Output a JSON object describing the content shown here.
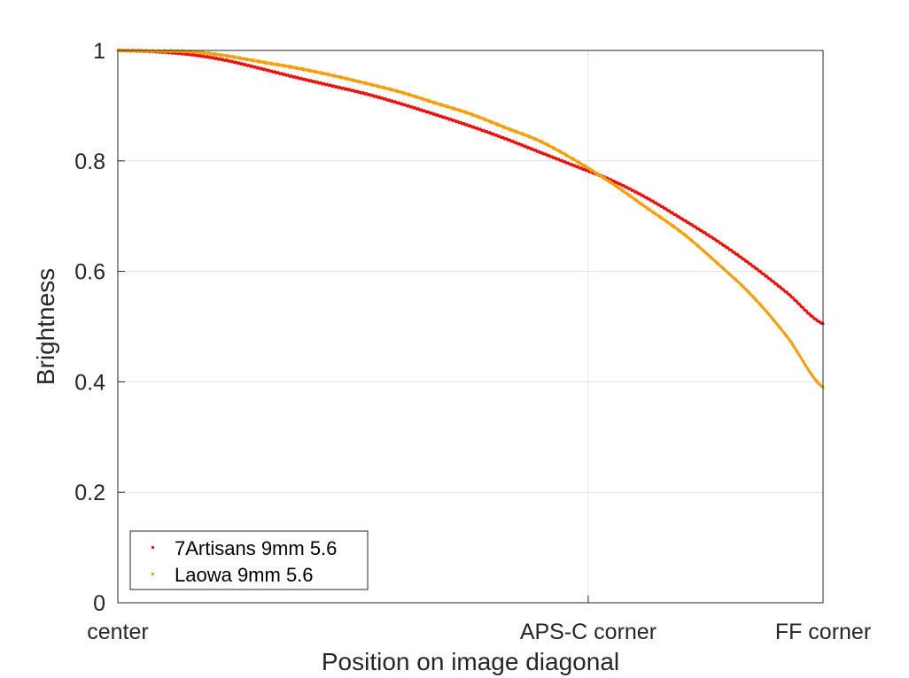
{
  "chart_data": {
    "type": "line",
    "xlabel": "Position on image diagonal",
    "ylabel": "Brightness",
    "xlim": [
      0,
      1
    ],
    "ylim": [
      0,
      1
    ],
    "x_ticks": [
      {
        "value": 0,
        "label": "center"
      },
      {
        "value": 0.667,
        "label": "APS-C corner"
      },
      {
        "value": 1,
        "label": "FF corner"
      }
    ],
    "y_ticks": [
      {
        "value": 0,
        "label": "0"
      },
      {
        "value": 0.2,
        "label": "0.2"
      },
      {
        "value": 0.4,
        "label": "0.4"
      },
      {
        "value": 0.6,
        "label": "0.6"
      },
      {
        "value": 0.8,
        "label": "0.8"
      },
      {
        "value": 1,
        "label": "1"
      }
    ],
    "grid": true,
    "legend_position": "bottom-left",
    "series": [
      {
        "name": "7Artisans 9mm 5.6",
        "color": "#e8120e",
        "x": [
          0,
          0.05,
          0.1,
          0.15,
          0.2,
          0.25,
          0.3,
          0.35,
          0.4,
          0.45,
          0.5,
          0.55,
          0.6,
          0.65,
          0.7,
          0.75,
          0.8,
          0.85,
          0.9,
          0.95,
          1.0
        ],
        "y": [
          1.0,
          0.998,
          0.993,
          0.983,
          0.968,
          0.952,
          0.937,
          0.922,
          0.904,
          0.884,
          0.863,
          0.84,
          0.815,
          0.79,
          0.765,
          0.733,
          0.695,
          0.655,
          0.61,
          0.56,
          0.505
        ]
      },
      {
        "name": "Laowa 9mm 5.6",
        "color": "#f2a00f",
        "x": [
          0,
          0.05,
          0.1,
          0.15,
          0.2,
          0.25,
          0.3,
          0.35,
          0.4,
          0.45,
          0.5,
          0.55,
          0.6,
          0.65,
          0.7,
          0.75,
          0.8,
          0.85,
          0.9,
          0.95,
          1.0
        ],
        "y": [
          1.0,
          0.999,
          0.998,
          0.991,
          0.98,
          0.969,
          0.956,
          0.941,
          0.925,
          0.905,
          0.885,
          0.86,
          0.835,
          0.8,
          0.76,
          0.715,
          0.67,
          0.615,
          0.555,
          0.48,
          0.39
        ]
      }
    ]
  }
}
